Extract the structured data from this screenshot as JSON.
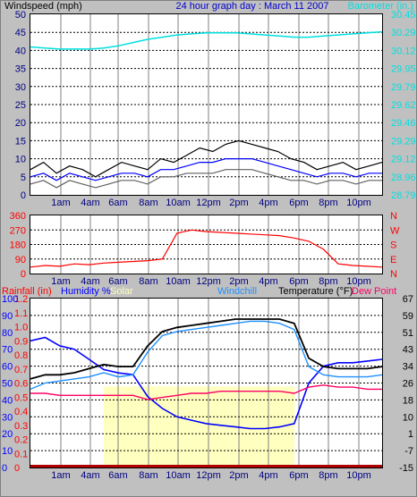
{
  "header": {
    "left_label": "Windspeed (mph)",
    "center_title": "24 hour graph day : March 11 2007",
    "right_label": "Barometer (in.)"
  },
  "colors": {
    "background": "#c0c0c0",
    "plot_bg": "#ffffff",
    "wind": "#000000",
    "wind_avg": "#0000ff",
    "wind_gust": "#606060",
    "barometer": "#00e0e0",
    "direction": "#ff0000",
    "rainfall": "#ff0000",
    "humidity": "#0000ff",
    "solar": "#ffffbf",
    "windchill": "#1e90ff",
    "temperature": "#000000",
    "dew_point": "#ff0066"
  },
  "chart_data": [
    {
      "type": "line",
      "title": "24 hour graph day : March 11 2007",
      "x_ticks": [
        "1am",
        "4am",
        "6am",
        "8am",
        "10am",
        "12pm",
        "2pm",
        "4pm",
        "6pm",
        "8pm",
        "10pm"
      ],
      "y_left": {
        "label": "Windspeed (mph)",
        "ticks": [
          0,
          5,
          10,
          15,
          20,
          25,
          30,
          35,
          40,
          45,
          50
        ],
        "ylim": [
          0,
          50
        ]
      },
      "y_right": {
        "label": "Barometer (in.)",
        "ticks": [
          "28.79",
          "28.96",
          "29.12",
          "29.29",
          "29.46",
          "29.62",
          "29.79",
          "29.95",
          "30.12",
          "30.29",
          "30.45"
        ],
        "ylim": [
          28.79,
          30.45
        ]
      },
      "series": [
        {
          "role": "barometer",
          "axis": "right",
          "values": [
            30.15,
            30.14,
            30.13,
            30.13,
            30.13,
            30.14,
            30.16,
            30.19,
            30.22,
            30.24,
            30.26,
            30.27,
            30.28,
            30.28,
            30.28,
            30.27,
            30.26,
            30.25,
            30.24,
            30.24,
            30.25,
            30.26,
            30.27,
            30.28,
            30.29
          ]
        },
        {
          "role": "wind",
          "axis": "left",
          "values": [
            7,
            9,
            6,
            8,
            7,
            5,
            7,
            9,
            8,
            7,
            10,
            9,
            11,
            13,
            12,
            14,
            15,
            14,
            13,
            12,
            10,
            9,
            7,
            8,
            9,
            7,
            8,
            9
          ]
        },
        {
          "role": "wind_avg",
          "axis": "left",
          "values": [
            5,
            6,
            4,
            6,
            5,
            4,
            5,
            6,
            6,
            5,
            7,
            7,
            8,
            9,
            9,
            10,
            10,
            10,
            9,
            8,
            7,
            6,
            5,
            6,
            6,
            5,
            6,
            6
          ]
        },
        {
          "role": "wind_gust",
          "axis": "left",
          "values": [
            3,
            4,
            2,
            4,
            3,
            2,
            3,
            4,
            4,
            3,
            5,
            5,
            6,
            6,
            6,
            7,
            7,
            7,
            6,
            5,
            4,
            4,
            3,
            4,
            4,
            3,
            4,
            4
          ]
        }
      ]
    },
    {
      "type": "line",
      "x_ticks": [
        "1am",
        "4am",
        "6am",
        "8am",
        "10am",
        "12pm",
        "2pm",
        "4pm",
        "6pm",
        "8pm",
        "10pm"
      ],
      "y_left": {
        "ticks": [
          0,
          90,
          180,
          270,
          360
        ],
        "ylim": [
          0,
          360
        ]
      },
      "y_right": {
        "ticks": [
          "N",
          "W",
          "S",
          "E",
          "N"
        ]
      },
      "series": [
        {
          "role": "direction",
          "values": [
            40,
            50,
            45,
            60,
            55,
            65,
            70,
            75,
            80,
            90,
            250,
            270,
            260,
            255,
            250,
            245,
            240,
            235,
            220,
            200,
            150,
            60,
            50,
            45,
            40
          ]
        }
      ]
    },
    {
      "type": "line",
      "legend": [
        "Rainfall (in)",
        "Humidity %",
        "Solar",
        "Windchill",
        "Temperature (°F)",
        "Dew Point"
      ],
      "x_ticks": [
        "1am",
        "4am",
        "6am",
        "8am",
        "10am",
        "12pm",
        "2pm",
        "4pm",
        "6pm",
        "8pm",
        "10pm"
      ],
      "y_left_rain": {
        "ticks": [
          "0",
          "0.1",
          "0.2",
          "0.3",
          "0.4",
          "0.5",
          "0.6",
          "0.7",
          "0.8",
          "0.9",
          "1.0",
          "1.1",
          "1.2"
        ]
      },
      "y_left_humidity": {
        "ticks": [
          0,
          10,
          20,
          30,
          40,
          50,
          60,
          70,
          80,
          90,
          100
        ],
        "ylim": [
          0,
          100
        ]
      },
      "y_right": {
        "label": "Temperature (°F)",
        "ticks": [
          -15,
          -7,
          1,
          10,
          18,
          26,
          34,
          43,
          51,
          59,
          67
        ],
        "ylim": [
          -15,
          67
        ]
      },
      "series": [
        {
          "role": "humidity",
          "values": [
            75,
            77,
            72,
            70,
            64,
            58,
            56,
            55,
            42,
            35,
            30,
            28,
            26,
            25,
            24,
            23,
            23,
            24,
            26,
            50,
            60,
            62,
            62,
            63,
            64
          ]
        },
        {
          "role": "temperature",
          "values": [
            28,
            30,
            30,
            31,
            33,
            35,
            34,
            34,
            44,
            51,
            53,
            54,
            55,
            56,
            57,
            57,
            57,
            57,
            55,
            38,
            34,
            33,
            33,
            33,
            34
          ]
        },
        {
          "role": "windchill",
          "values": [
            23,
            26,
            27,
            28,
            29,
            31,
            29,
            30,
            41,
            49,
            51,
            52,
            53,
            54,
            55,
            56,
            56,
            55,
            52,
            34,
            30,
            29,
            29,
            29,
            30
          ]
        },
        {
          "role": "dew_point",
          "values": [
            21,
            21,
            20,
            20,
            20,
            20,
            20,
            20,
            18,
            19,
            20,
            21,
            21,
            22,
            22,
            22,
            22,
            22,
            21,
            24,
            25,
            24,
            24,
            23,
            23
          ]
        },
        {
          "role": "solar",
          "values": [
            0,
            0,
            0,
            0,
            0,
            1,
            1,
            1,
            1,
            1,
            1,
            1,
            1,
            1,
            1,
            1,
            1,
            1,
            0,
            0,
            0,
            0,
            0,
            0,
            0
          ]
        },
        {
          "role": "rainfall",
          "values": [
            0,
            0,
            0,
            0,
            0,
            0,
            0,
            0,
            0,
            0,
            0,
            0,
            0,
            0,
            0,
            0,
            0,
            0,
            0,
            0,
            0,
            0,
            0,
            0,
            0
          ]
        }
      ]
    }
  ]
}
